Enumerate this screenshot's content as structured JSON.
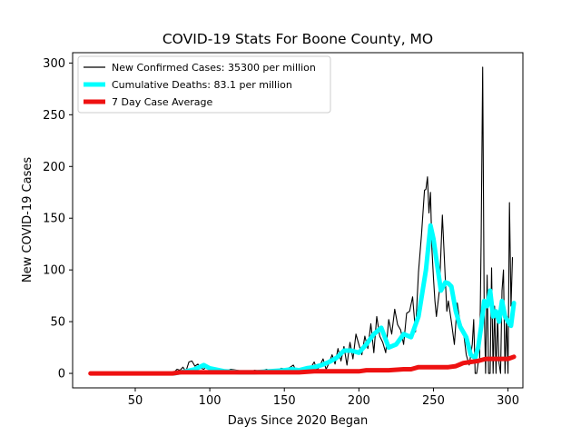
{
  "chart_data": {
    "type": "line",
    "title": "COVID-19 Stats For Boone County, MO",
    "xlabel": "Days Since 2020 Began",
    "ylabel": "New COVID-19 Cases",
    "xlim": [
      8,
      310
    ],
    "ylim": [
      -14,
      310
    ],
    "xticks": [
      50,
      100,
      150,
      200,
      250,
      300
    ],
    "yticks": [
      0,
      50,
      100,
      150,
      200,
      250,
      300
    ],
    "legend_position": "top-left",
    "grid": false,
    "series": [
      {
        "name": "New Confirmed Cases: 35300 per million",
        "color": "#000000",
        "width": "thin",
        "x": [
          20,
          40,
          60,
          76,
          78,
          80,
          82,
          84,
          86,
          88,
          90,
          92,
          94,
          96,
          98,
          100,
          103,
          106,
          110,
          114,
          118,
          122,
          126,
          130,
          134,
          138,
          142,
          145,
          148,
          151,
          154,
          156,
          158,
          160,
          162,
          164,
          166,
          168,
          170,
          172,
          174,
          176,
          178,
          180,
          182,
          184,
          186,
          188,
          190,
          192,
          194,
          196,
          198,
          200,
          202,
          204,
          206,
          208,
          210,
          212,
          214,
          216,
          218,
          220,
          222,
          224,
          226,
          228,
          230,
          232,
          234,
          236,
          238,
          240,
          242,
          244,
          245,
          246,
          247,
          248,
          249,
          250,
          251,
          252,
          254,
          256,
          258,
          259,
          260,
          262,
          264,
          266,
          268,
          270,
          272,
          274,
          276,
          277,
          278,
          279,
          280,
          281,
          282,
          283,
          284,
          285,
          286,
          287,
          288,
          289,
          290,
          291,
          292,
          293,
          294,
          295,
          296,
          297,
          298,
          299,
          300,
          301,
          302,
          303
        ],
        "values": [
          0,
          0,
          0,
          1,
          4,
          3,
          6,
          2,
          11,
          12,
          7,
          9,
          5,
          4,
          7,
          3,
          2,
          1,
          2,
          4,
          3,
          2,
          1,
          3,
          2,
          4,
          2,
          3,
          5,
          4,
          6,
          8,
          2,
          3,
          5,
          2,
          4,
          6,
          11,
          3,
          8,
          14,
          4,
          10,
          18,
          9,
          24,
          12,
          26,
          8,
          30,
          14,
          38,
          28,
          18,
          36,
          24,
          48,
          20,
          55,
          36,
          30,
          20,
          52,
          38,
          62,
          47,
          42,
          28,
          58,
          60,
          74,
          40,
          98,
          134,
          177,
          178,
          190,
          155,
          175,
          120,
          92,
          70,
          55,
          80,
          153,
          90,
          60,
          70,
          50,
          28,
          68,
          48,
          42,
          18,
          8,
          28,
          52,
          0,
          0,
          10,
          15,
          128,
          296,
          70,
          0,
          95,
          0,
          0,
          102,
          0,
          65,
          0,
          55,
          10,
          0,
          80,
          100,
          0,
          55,
          0,
          165,
          65,
          112
        ]
      },
      {
        "name": "Cumulative Deaths: 83.1 per million",
        "color": "#00ffff",
        "width": "thick",
        "x": [
          76,
          84,
          90,
          96,
          100,
          110,
          120,
          130,
          140,
          150,
          155,
          160,
          165,
          170,
          175,
          180,
          185,
          190,
          195,
          200,
          205,
          210,
          215,
          220,
          225,
          230,
          235,
          240,
          245,
          248,
          250,
          252,
          255,
          258,
          260,
          262,
          265,
          268,
          272,
          275,
          278,
          280,
          282,
          284,
          286,
          288,
          290,
          292,
          294,
          296,
          298,
          300,
          302,
          304
        ],
        "values": [
          0,
          2,
          4,
          8,
          5,
          2,
          1,
          1,
          2,
          3,
          4,
          3,
          5,
          6,
          8,
          11,
          15,
          22,
          22,
          20,
          28,
          38,
          44,
          25,
          28,
          38,
          35,
          55,
          100,
          143,
          130,
          110,
          80,
          88,
          87,
          84,
          60,
          45,
          35,
          18,
          15,
          25,
          45,
          70,
          65,
          80,
          55,
          60,
          50,
          70,
          55,
          50,
          46,
          68
        ]
      },
      {
        "name": "7 Day Case Average",
        "color": "#ee1111",
        "width": "thick",
        "x": [
          20,
          30,
          40,
          50,
          60,
          70,
          75,
          80,
          85,
          90,
          95,
          100,
          110,
          120,
          130,
          140,
          150,
          160,
          170,
          175,
          180,
          185,
          190,
          195,
          200,
          205,
          210,
          220,
          230,
          235,
          240,
          245,
          250,
          255,
          260,
          265,
          270,
          275,
          280,
          285,
          290,
          295,
          300,
          304
        ],
        "values": [
          0,
          0,
          0,
          0,
          0,
          0,
          0,
          1,
          1,
          1,
          1,
          1,
          1,
          1,
          1,
          1,
          1,
          1,
          2,
          2,
          2,
          2,
          2,
          2,
          2,
          3,
          3,
          3,
          4,
          4,
          6,
          6,
          6,
          6,
          6,
          7,
          10,
          11,
          12,
          14,
          14,
          14,
          14,
          16
        ]
      }
    ]
  }
}
